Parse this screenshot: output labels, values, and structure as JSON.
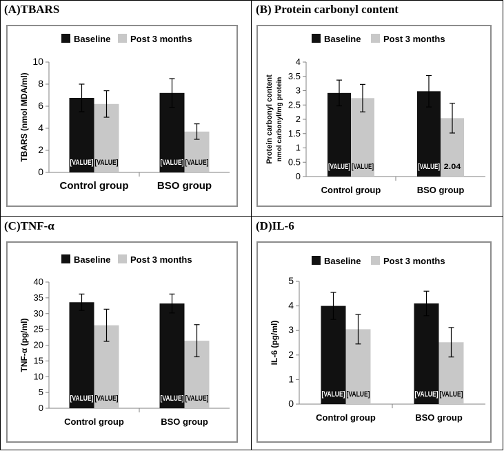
{
  "panels": [
    {
      "title": "(A)TBARS",
      "chart_data": {
        "type": "bar",
        "categories": [
          "Control group",
          "BSO group"
        ],
        "series": [
          {
            "name": "Baseline",
            "color": "#111111",
            "values": [
              6.75,
              7.2
            ],
            "errors": [
              1.25,
              1.3
            ],
            "labels": [
              "[VALUE]",
              "[VALUE]"
            ]
          },
          {
            "name": "Post 3 months",
            "color": "#c8c8c8",
            "values": [
              6.2,
              3.7
            ],
            "errors": [
              1.2,
              0.7
            ],
            "labels": [
              "[VALUE]",
              "[VALUE]"
            ]
          }
        ],
        "ylabel": "TBARS (nmol MDA/ml)",
        "ylabel_sub": "",
        "ylim": [
          0,
          10
        ],
        "yticks": [
          "0",
          "2",
          "4",
          "6",
          "8",
          "10"
        ],
        "legend": "top"
      }
    },
    {
      "title": "(B) Protein carbonyl content",
      "chart_data": {
        "type": "bar",
        "categories": [
          "Control group",
          "BSO group"
        ],
        "series": [
          {
            "name": "Baseline",
            "color": "#111111",
            "values": [
              2.92,
              2.98
            ],
            "errors": [
              0.45,
              0.55
            ],
            "labels": [
              "[VALUE]",
              "[VALUE]"
            ]
          },
          {
            "name": "Post 3 months",
            "color": "#c8c8c8",
            "values": [
              2.74,
              2.04
            ],
            "errors": [
              0.48,
              0.52
            ],
            "labels": [
              "[VALUE]",
              "2.04"
            ]
          }
        ],
        "ylabel": "Protein carbonyl content",
        "ylabel_sub": "nmol carbonyl/mg protein",
        "ylim": [
          0,
          4
        ],
        "yticks": [
          "0",
          "0.5",
          "1",
          "1.5",
          "2",
          "2.5",
          "3",
          "3.5",
          "4"
        ],
        "legend": "top"
      }
    },
    {
      "title": "(C)TNF-α",
      "chart_data": {
        "type": "bar",
        "categories": [
          "Control group",
          "BSO group"
        ],
        "series": [
          {
            "name": "Baseline",
            "color": "#111111",
            "values": [
              33.6,
              33.2
            ],
            "errors": [
              2.6,
              3.0
            ],
            "labels": [
              "[VALUE]",
              "[VALUE]"
            ]
          },
          {
            "name": "Post 3 months",
            "color": "#c8c8c8",
            "values": [
              26.3,
              21.4
            ],
            "errors": [
              5.1,
              5.1
            ],
            "labels": [
              "[VALUE]",
              "[VALUE]"
            ]
          }
        ],
        "ylabel": "TNF-α  (pg/ml)",
        "ylabel_sub": "",
        "ylim": [
          0,
          40
        ],
        "yticks": [
          "0",
          "5",
          "10",
          "15",
          "20",
          "25",
          "30",
          "35",
          "40"
        ],
        "legend": "top"
      }
    },
    {
      "title": "(D)IL-6",
      "chart_data": {
        "type": "bar",
        "categories": [
          "Control group",
          "BSO group"
        ],
        "series": [
          {
            "name": "Baseline",
            "color": "#111111",
            "values": [
              4.0,
              4.1
            ],
            "errors": [
              0.55,
              0.5
            ],
            "labels": [
              "[VALUE]",
              "[VALUE]"
            ]
          },
          {
            "name": "Post 3 months",
            "color": "#c8c8c8",
            "values": [
              3.05,
              2.52
            ],
            "errors": [
              0.6,
              0.6
            ],
            "labels": [
              "[VALUE]",
              "[VALUE]"
            ]
          }
        ],
        "ylabel": "IL-6  (pg/ml)",
        "ylabel_sub": "",
        "ylim": [
          0,
          5
        ],
        "yticks": [
          "0",
          "1",
          "2",
          "3",
          "4",
          "5"
        ],
        "legend": "top"
      }
    }
  ]
}
